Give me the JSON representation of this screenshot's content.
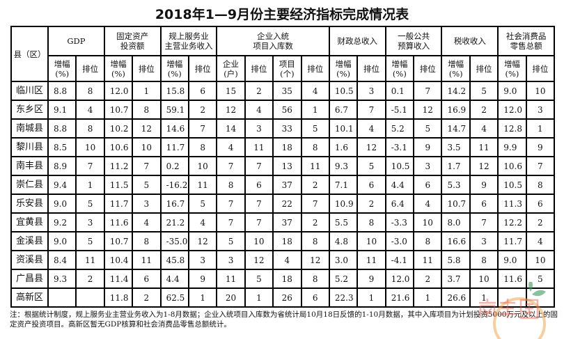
{
  "title": "2018年1—9月份主要经济指标完成情况表",
  "header": {
    "county": "县（区）",
    "groups": [
      "GDP",
      "固定资产\n投资额",
      "规上服务业\n主营业务收入",
      "企业入统\n项目入库数",
      "财政总收入",
      "一般公共\n预算收入",
      "税收收入",
      "社会消费品\n零售总额"
    ],
    "sub": [
      "增幅\n(%)",
      "排位",
      "增幅\n(%)",
      "排位",
      "增幅\n(%)",
      "排位",
      "企业\n(户)",
      "排位",
      "项目\n(个)",
      "排位",
      "增幅\n(%)",
      "排位",
      "增幅\n(%)",
      "排位",
      "增幅\n(%)",
      "排位",
      "增幅\n(%)",
      "排位"
    ]
  },
  "rows": [
    {
      "name": "临川区",
      "v": [
        "8.8",
        "8",
        "12.0",
        "1",
        "15.8",
        "6",
        "15",
        "2",
        "35",
        "4",
        "10.5",
        "3",
        "0.1",
        "7",
        "14.2",
        "5",
        "9.0",
        "10"
      ]
    },
    {
      "name": "东乡区",
      "v": [
        "9.1",
        "4",
        "10.7",
        "8",
        "59.1",
        "2",
        "12",
        "4",
        "56",
        "1",
        "6.7",
        "7",
        "-5.1",
        "12",
        "16.9",
        "2",
        "12.0",
        "3"
      ]
    },
    {
      "name": "南城县",
      "v": [
        "8.8",
        "8",
        "10.2",
        "12",
        "14.6",
        "7",
        "14",
        "3",
        "33",
        "5",
        "10.1",
        "4",
        "5.2",
        "5",
        "14.7",
        "4",
        "12.8",
        "1"
      ]
    },
    {
      "name": "黎川县",
      "v": [
        "8.5",
        "10",
        "10.6",
        "10",
        "11.7",
        "8",
        "4",
        "11",
        "18",
        "8",
        "1.6",
        "12",
        "-3.1",
        "9",
        "3.5",
        "11",
        "9.9",
        "9"
      ]
    },
    {
      "name": "南丰县",
      "v": [
        "8.9",
        "7",
        "11.2",
        "7",
        "0.2",
        "10",
        "7",
        "7",
        "13",
        "11",
        "9.3",
        "5",
        "10.5",
        "3",
        "1.7",
        "12",
        "10.6",
        "7"
      ]
    },
    {
      "name": "崇仁县",
      "v": [
        "9.4",
        "1",
        "11.5",
        "5",
        "-16.2",
        "11",
        "8",
        "6",
        "37",
        "2",
        "7.1",
        "6",
        "4.4",
        "6",
        "5.3",
        "9",
        "10.5",
        "8"
      ]
    },
    {
      "name": "乐安县",
      "v": [
        "9.0",
        "5",
        "11.7",
        "3",
        "16.7",
        "5",
        "7",
        "7",
        "22",
        "7",
        "10.9",
        "2",
        "6.4",
        "4",
        "10.7",
        "6",
        "11.3",
        "6"
      ]
    },
    {
      "name": "宜黄县",
      "v": [
        "9.2",
        "3",
        "11.6",
        "4",
        "21.2",
        "4",
        "7",
        "7",
        "37",
        "2",
        "5.5",
        "8",
        "-3.3",
        "10",
        "8.0",
        "7",
        "12.2",
        "2"
      ]
    },
    {
      "name": "金溪县",
      "v": [
        "9.0",
        "5",
        "10.7",
        "8",
        "-35.0",
        "12",
        "5",
        "10",
        "18",
        "8",
        "4.8",
        "10",
        "-3.0",
        "8",
        "16.6",
        "3",
        "11.7",
        "4"
      ]
    },
    {
      "name": "资溪县",
      "v": [
        "8.4",
        "11",
        "10.4",
        "11",
        "45.8",
        "3",
        "3",
        "12",
        "4",
        "12",
        "3.0",
        "11",
        "-4.1",
        "11",
        "5.8",
        "8",
        "9.0",
        "10"
      ]
    },
    {
      "name": "广昌县",
      "v": [
        "9.3",
        "2",
        "11.4",
        "6",
        "4.4",
        "9",
        "11",
        "5",
        "18",
        "8",
        "5.2",
        "9",
        "12.0",
        "2",
        "3.7",
        "10",
        "11.6",
        "5"
      ]
    },
    {
      "name": "高新区",
      "v": [
        "",
        "",
        "11.8",
        "2",
        "62.5",
        "1",
        "20",
        "1",
        "26",
        "6",
        "22.3",
        "1",
        "21.6",
        "1",
        "26.6",
        "1",
        "",
        ""
      ]
    }
  ],
  "note": "注：根据统计制度，规上服务业主营业务收入为1-8月数据；企业入统项目入库数为省统计局10月18日反馈的1-10月数据，其中入库项目为计划投资5000万元及以上的固定资产投资项目。高新区暂无GDP核算和社会消费品零售总额统计。",
  "watermark": "南丰圈",
  "colors": {
    "watermark_orange": "#f0a040",
    "watermark_text": "#e05a4a",
    "leaf": "#3a9a5a"
  }
}
